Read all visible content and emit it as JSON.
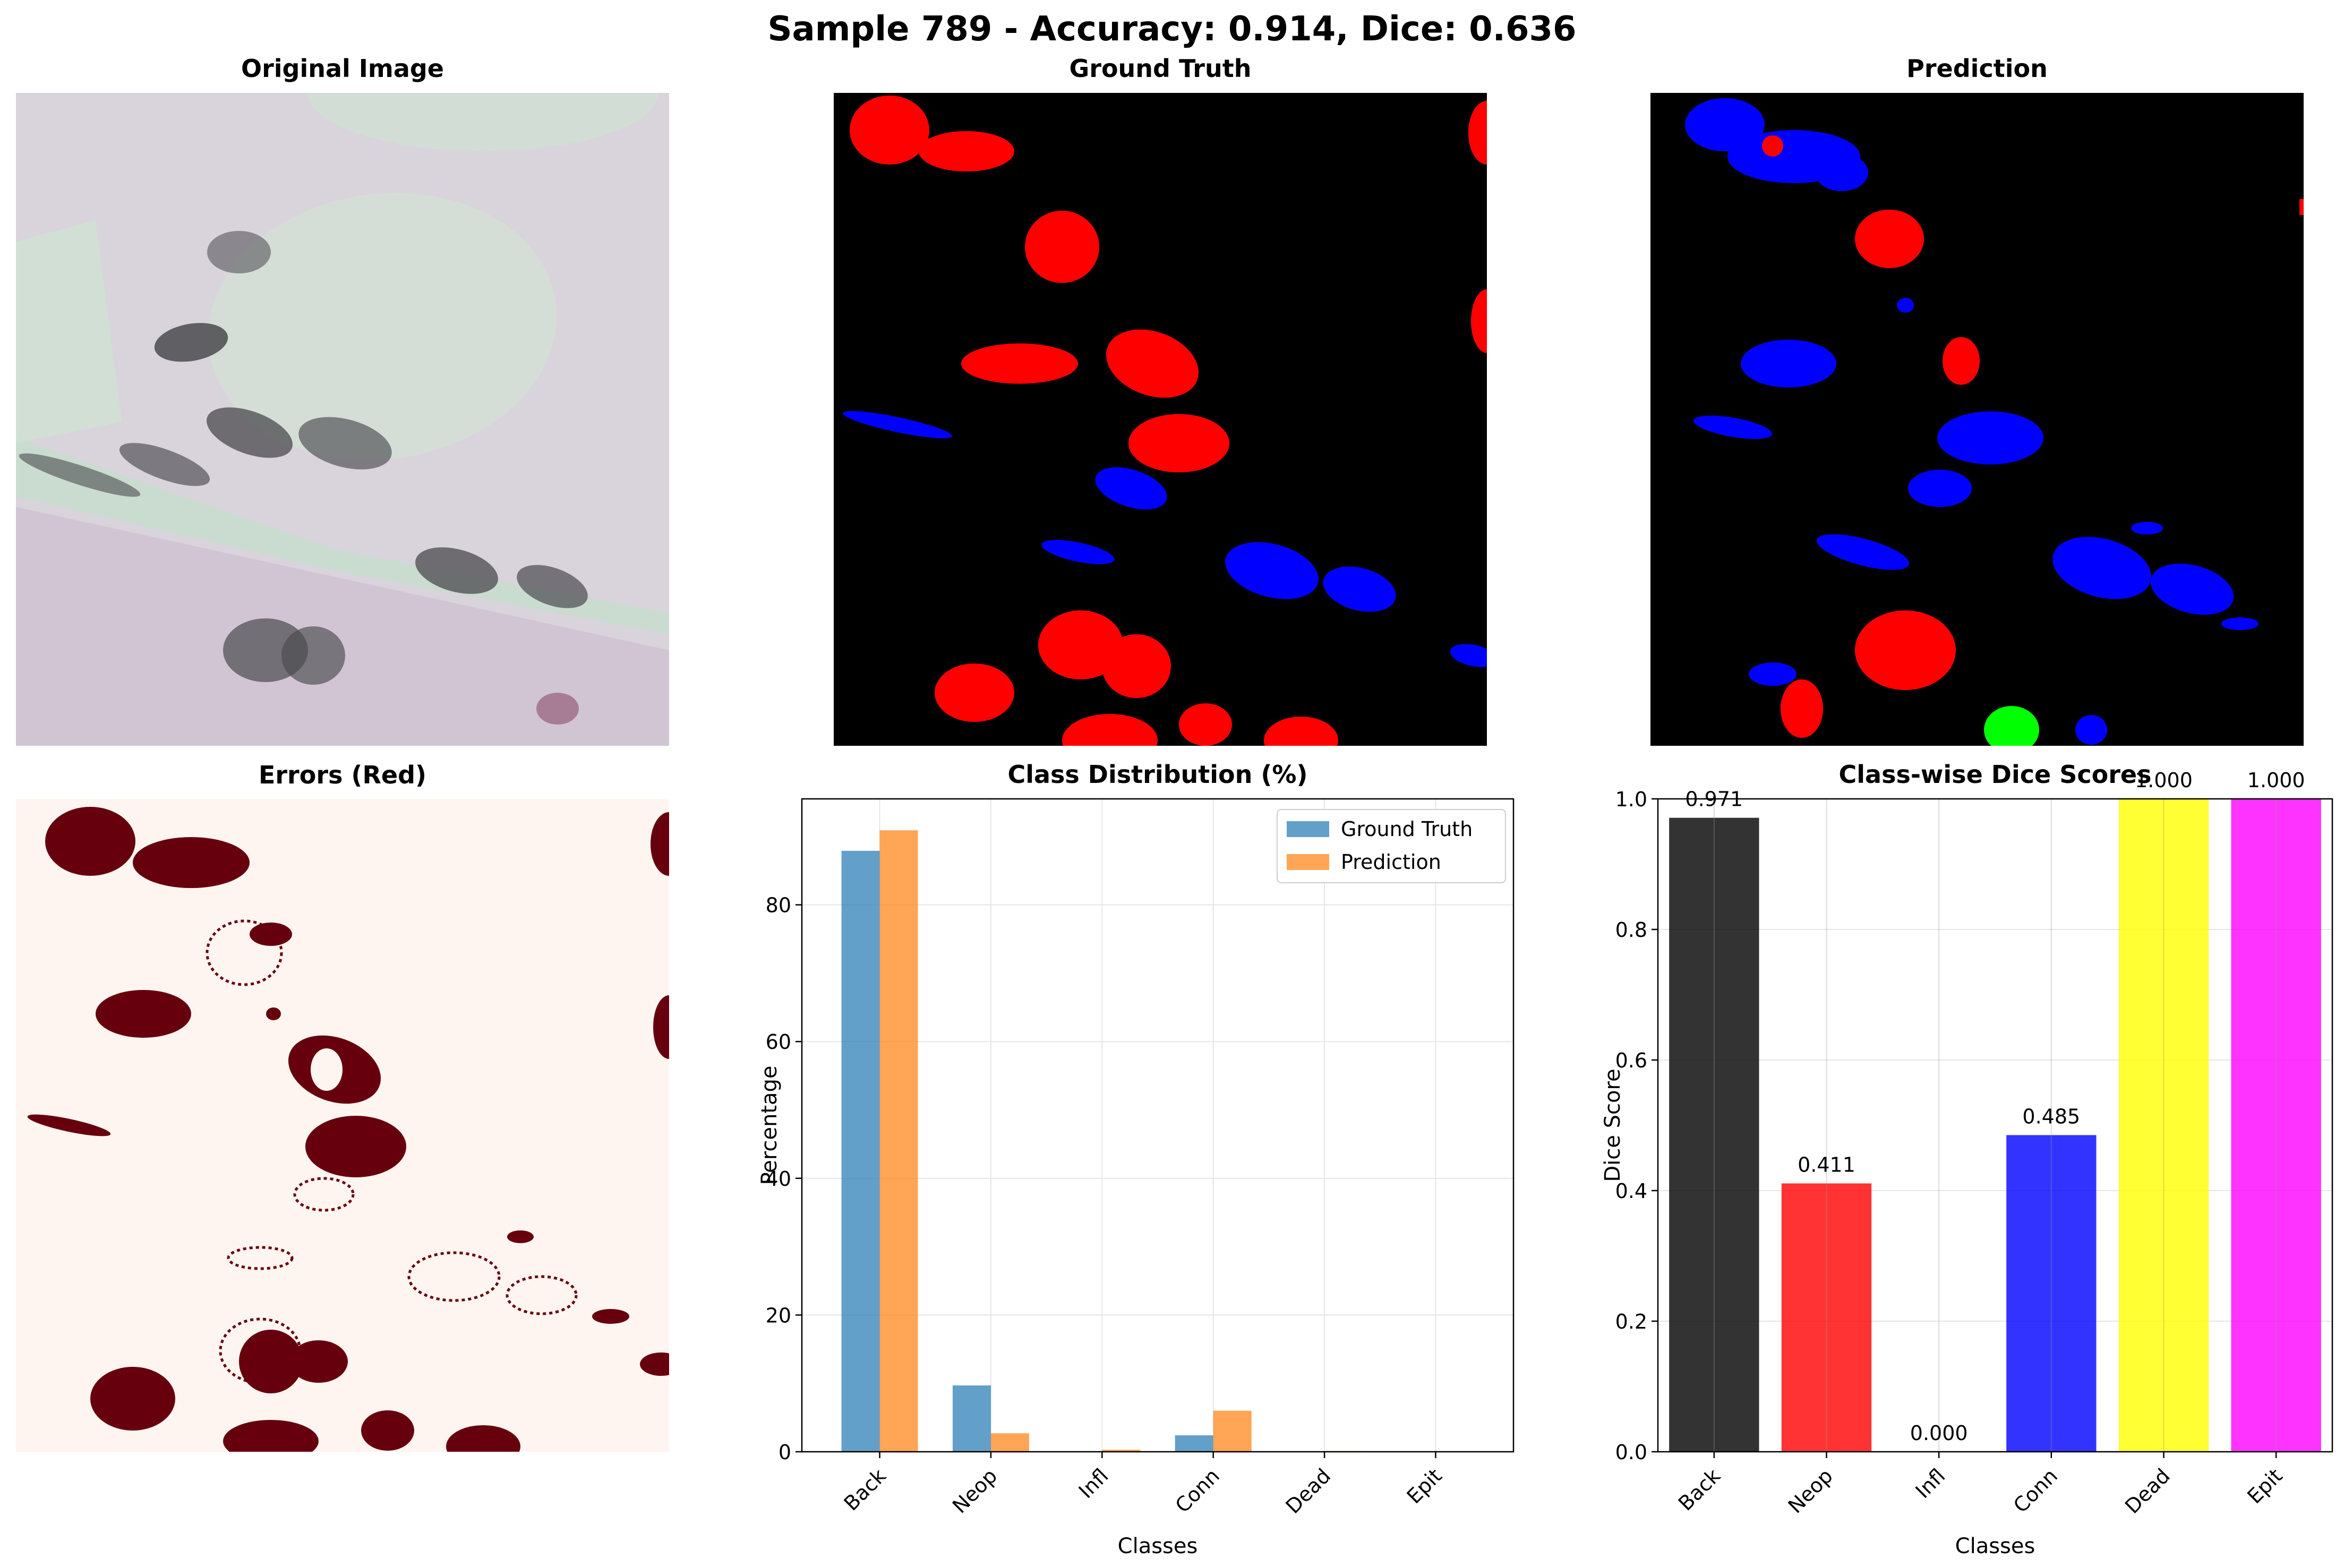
{
  "suptitle": "Sample 789 - Accuracy: 0.914, Dice: 0.636",
  "panels": {
    "original": "Original Image",
    "ground_truth": "Ground Truth",
    "prediction": "Prediction",
    "errors": "Errors (Red)"
  },
  "colors": {
    "gt_fill": "#ff0000",
    "conn_fill": "#0000ff",
    "dead_fill": "#00ff00",
    "mask_bg": "#000000",
    "error_fill": "#67000d",
    "error_bg": "#fff5f0",
    "tissue_bg": "#d9d3dc",
    "tissue_light": "#cfe0d4",
    "nucleus_dark": "#4a4a4e"
  },
  "chart_data": [
    {
      "type": "bar",
      "title": "Class Distribution (%)",
      "xlabel": "Classes",
      "ylabel": "Percentage",
      "categories": [
        "Back",
        "Neop",
        "Infl",
        "Conn",
        "Dead",
        "Epit"
      ],
      "series": [
        {
          "name": "Ground Truth",
          "color": "#1f77b4",
          "values": [
            87.9,
            9.7,
            0.0,
            2.4,
            0.0,
            0.0
          ]
        },
        {
          "name": "Prediction",
          "color": "#ff7f0e",
          "values": [
            90.9,
            2.7,
            0.3,
            6.0,
            0.1,
            0.0
          ]
        }
      ],
      "ylim": [
        0,
        95.5
      ],
      "yticks": [
        0,
        20,
        40,
        60,
        80
      ],
      "grid": true,
      "legend": "top-right"
    },
    {
      "type": "bar",
      "title": "Class-wise Dice Scores",
      "xlabel": "Classes",
      "ylabel": "Dice Score",
      "categories": [
        "Back",
        "Neop",
        "Infl",
        "Conn",
        "Dead",
        "Epit"
      ],
      "values": [
        0.971,
        0.411,
        0.0,
        0.485,
        1.0,
        1.0
      ],
      "value_labels": [
        "0.971",
        "0.411",
        "0.000",
        "0.485",
        "1.000",
        "1.000"
      ],
      "colors": [
        "#000000",
        "#ff0000",
        "#008000",
        "#0000ff",
        "#ffff00",
        "#ff00ff"
      ],
      "ylim": [
        0,
        1.0
      ],
      "yticks": [
        0.0,
        0.2,
        0.4,
        0.6,
        0.8,
        1.0
      ],
      "ytick_labels": [
        "0.0",
        "0.2",
        "0.4",
        "0.6",
        "0.8",
        "1.0"
      ],
      "grid": true
    }
  ]
}
